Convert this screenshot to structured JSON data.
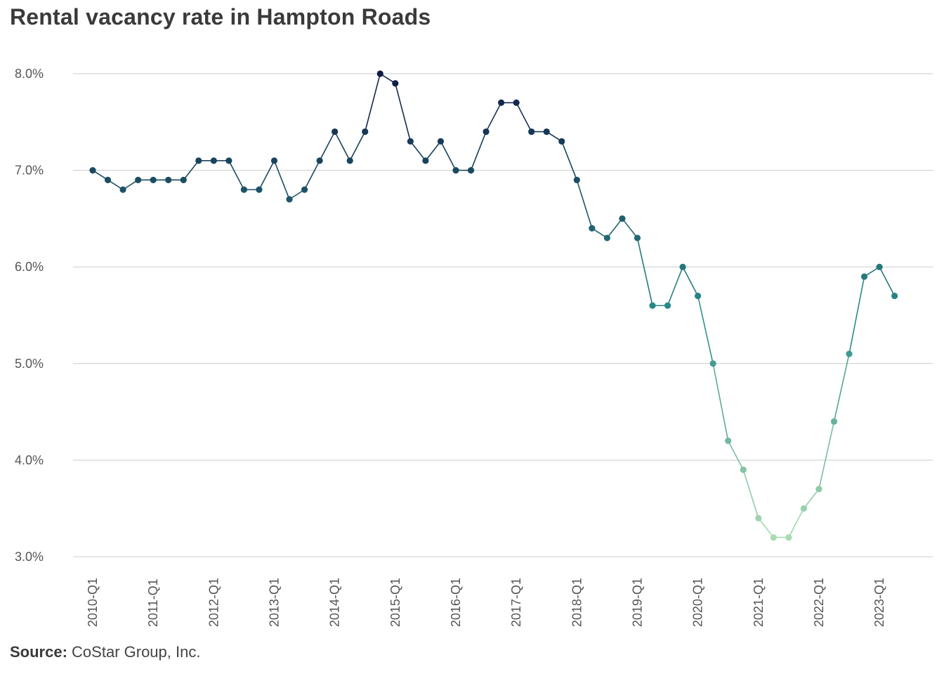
{
  "title": "Rental vacancy rate in Hampton Roads",
  "source_label": "Source:",
  "source_text": "CoStar Group, Inc.",
  "colors": {
    "high": "#101c45",
    "mid": "#2a8c8a",
    "low": "#a8dcb0",
    "grid": "#cccccc"
  },
  "chart_data": {
    "type": "line",
    "title": "Rental vacancy rate in Hampton Roads",
    "xlabel": "",
    "ylabel": "",
    "ylim": [
      3.0,
      8.0
    ],
    "y_ticks": [
      3.0,
      4.0,
      5.0,
      6.0,
      7.0,
      8.0
    ],
    "y_tick_labels": [
      "3.0%",
      "4.0%",
      "5.0%",
      "6.0%",
      "7.0%",
      "8.0%"
    ],
    "x_tick_labels": [
      "2010-Q1",
      "2011-Q1",
      "2012-Q1",
      "2013-Q1",
      "2014-Q1",
      "2015-Q1",
      "2016-Q1",
      "2017-Q1",
      "2018-Q1",
      "2019-Q1",
      "2020-Q1",
      "2021-Q1",
      "2022-Q1",
      "2023-Q1"
    ],
    "grid": "horizontal",
    "series": [
      {
        "x": [
          "2010-Q1",
          "2010-Q2",
          "2010-Q3",
          "2010-Q4",
          "2011-Q1",
          "2011-Q2",
          "2011-Q3",
          "2011-Q4",
          "2012-Q1",
          "2012-Q2",
          "2012-Q3",
          "2012-Q4",
          "2013-Q1",
          "2013-Q2",
          "2013-Q3",
          "2013-Q4",
          "2014-Q1",
          "2014-Q2",
          "2014-Q3",
          "2014-Q4",
          "2015-Q1",
          "2015-Q2",
          "2015-Q3",
          "2015-Q4",
          "2016-Q1",
          "2016-Q2",
          "2016-Q3",
          "2016-Q4",
          "2017-Q1",
          "2017-Q2",
          "2017-Q3",
          "2017-Q4",
          "2018-Q1",
          "2018-Q2",
          "2018-Q3",
          "2018-Q4",
          "2019-Q1",
          "2019-Q2",
          "2019-Q3",
          "2019-Q4",
          "2020-Q1",
          "2020-Q2",
          "2020-Q3",
          "2020-Q4",
          "2021-Q1",
          "2021-Q2",
          "2021-Q3",
          "2021-Q4",
          "2022-Q1",
          "2022-Q2",
          "2022-Q3",
          "2022-Q4",
          "2023-Q1",
          "2023-Q2"
        ],
        "values": [
          7.0,
          6.9,
          6.8,
          6.9,
          6.9,
          6.9,
          6.9,
          7.1,
          7.1,
          7.1,
          6.8,
          6.8,
          7.1,
          6.7,
          6.8,
          7.1,
          7.4,
          7.1,
          7.4,
          8.0,
          7.9,
          7.3,
          7.1,
          7.3,
          7.0,
          7.0,
          7.4,
          7.7,
          7.7,
          7.4,
          7.4,
          7.3,
          6.9,
          6.4,
          6.3,
          6.5,
          6.3,
          5.6,
          5.6,
          6.0,
          5.7,
          5.0,
          4.2,
          3.9,
          3.4,
          3.2,
          3.2,
          3.5,
          3.7,
          4.4,
          5.1,
          5.9,
          6.0,
          5.7
        ]
      }
    ]
  }
}
